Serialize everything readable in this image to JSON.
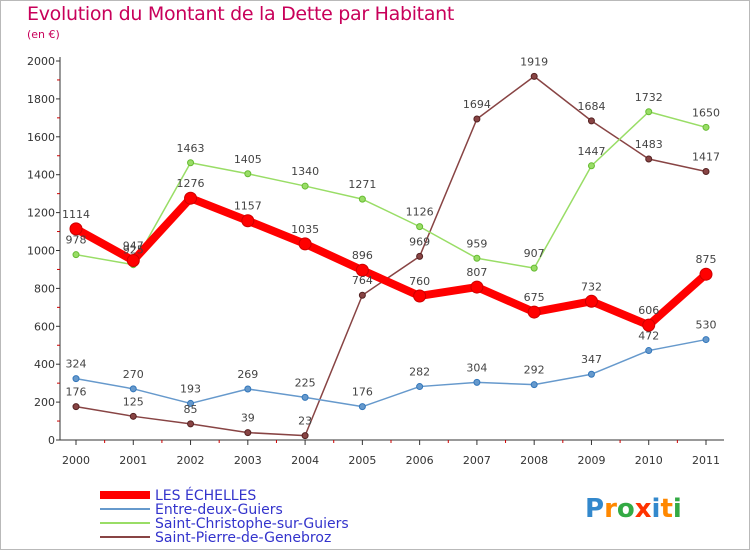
{
  "title": "Evolution du Montant de la Dette par Habitant",
  "subtitle": "(en €)",
  "logo": "Proxiti",
  "chart_data": {
    "type": "line",
    "x": [
      "2000",
      "2001",
      "2002",
      "2003",
      "2004",
      "2005",
      "2006",
      "2007",
      "2008",
      "2009",
      "2010",
      "2011"
    ],
    "ylim": [
      0,
      2000
    ],
    "yticks": [
      0,
      200,
      400,
      600,
      800,
      1000,
      1200,
      1400,
      1600,
      1800,
      2000
    ],
    "grid": false,
    "legend_position": "bottom-left",
    "series": [
      {
        "name": "LES ÉCHELLES",
        "color": "#ff0000",
        "values": [
          1114,
          947,
          1276,
          1157,
          1035,
          896,
          760,
          807,
          675,
          732,
          606,
          875
        ]
      },
      {
        "name": "Entre-deux-Guiers",
        "color": "#6699cc",
        "values": [
          324,
          270,
          193,
          269,
          225,
          176,
          282,
          304,
          292,
          347,
          472,
          530
        ]
      },
      {
        "name": "Saint-Christophe-sur-Guiers",
        "color": "#99dd66",
        "values": [
          978,
          925,
          1463,
          1405,
          1340,
          1271,
          1126,
          959,
          907,
          1447,
          1732,
          1650
        ]
      },
      {
        "name": "Saint-Pierre-de-Genebroz",
        "color": "#884444",
        "values": [
          176,
          125,
          85,
          39,
          23,
          764,
          969,
          1694,
          1919,
          1684,
          1483,
          1417
        ]
      }
    ]
  }
}
